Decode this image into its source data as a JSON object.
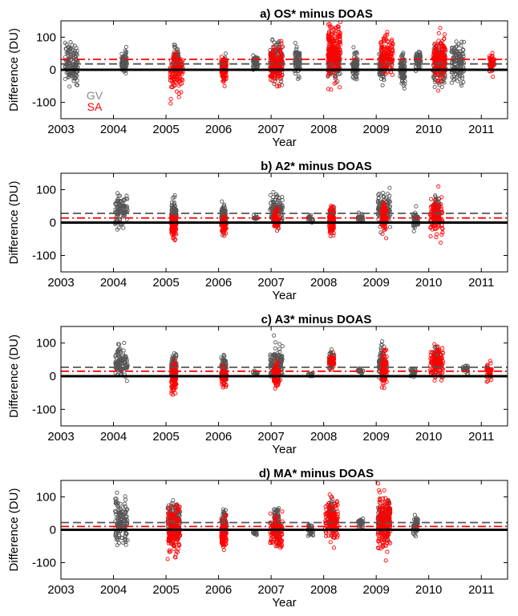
{
  "chart_data": [
    {
      "type": "scatter",
      "title": "a) OS* minus DOAS",
      "xlabel": "Year",
      "ylabel": "Difference (DU)",
      "xlim": [
        2003,
        2011.5
      ],
      "ylim": [
        -150,
        150
      ],
      "xticks": [
        2003,
        2004,
        2005,
        2006,
        2007,
        2008,
        2009,
        2010,
        2011
      ],
      "yticks": [
        -100,
        0,
        100
      ],
      "legend": {
        "placement": "lower-left",
        "entries": [
          "GV",
          "SA"
        ]
      },
      "series": [
        {
          "name": "GV",
          "color": "#555555",
          "mean_line": 18,
          "mean_style": "dashed",
          "clusters": [
            [
              2003.2,
              20,
              95
            ],
            [
              2004.2,
              25,
              50
            ],
            [
              2005.2,
              30,
              55
            ],
            [
              2006.1,
              15,
              40
            ],
            [
              2006.7,
              20,
              35
            ],
            [
              2007.1,
              25,
              90
            ],
            [
              2007.5,
              25,
              60
            ],
            [
              2008.2,
              25,
              80
            ],
            [
              2008.6,
              10,
              60
            ],
            [
              2009.1,
              15,
              70
            ],
            [
              2009.5,
              0,
              70
            ],
            [
              2009.8,
              25,
              50
            ],
            [
              2010.2,
              10,
              100
            ],
            [
              2010.55,
              25,
              90
            ]
          ]
        },
        {
          "name": "SA",
          "color": "#ff0000",
          "mean_line": 32,
          "mean_style": "dashdot",
          "clusters": [
            [
              2005.2,
              -10,
              90
            ],
            [
              2006.1,
              0,
              55
            ],
            [
              2007.1,
              15,
              90
            ],
            [
              2008.2,
              55,
              150
            ],
            [
              2009.2,
              40,
              100
            ],
            [
              2010.2,
              30,
              100
            ],
            [
              2011.2,
              20,
              40
            ]
          ]
        }
      ]
    },
    {
      "type": "scatter",
      "title": "b) A2* minus DOAS",
      "xlabel": "Year",
      "ylabel": "Difference (DU)",
      "xlim": [
        2003,
        2011.5
      ],
      "ylim": [
        -150,
        150
      ],
      "xticks": [
        2003,
        2004,
        2005,
        2006,
        2007,
        2008,
        2009,
        2010,
        2011
      ],
      "yticks": [
        -100,
        0,
        100
      ],
      "series": [
        {
          "name": "GV",
          "color": "#555555",
          "mean_line": 28,
          "mean_style": "dashed",
          "clusters": [
            [
              2004.15,
              40,
              75
            ],
            [
              2005.15,
              30,
              60
            ],
            [
              2006.1,
              25,
              60
            ],
            [
              2006.7,
              15,
              10
            ],
            [
              2007.1,
              40,
              80
            ],
            [
              2007.75,
              10,
              15
            ],
            [
              2008.15,
              20,
              40
            ],
            [
              2008.7,
              15,
              20
            ],
            [
              2009.15,
              40,
              80
            ],
            [
              2009.75,
              5,
              40
            ],
            [
              2010.15,
              40,
              60
            ]
          ]
        },
        {
          "name": "SA",
          "color": "#ff0000",
          "mean_line": 14,
          "mean_style": "dashdot",
          "clusters": [
            [
              2005.15,
              -10,
              60
            ],
            [
              2006.1,
              -10,
              40
            ],
            [
              2007.1,
              10,
              45
            ],
            [
              2008.15,
              0,
              70
            ],
            [
              2009.15,
              20,
              70
            ],
            [
              2010.15,
              15,
              80
            ]
          ]
        }
      ]
    },
    {
      "type": "scatter",
      "title": "c) A3* minus DOAS",
      "xlabel": "Year",
      "ylabel": "Difference (DU)",
      "xlim": [
        2003,
        2011.5
      ],
      "ylim": [
        -150,
        150
      ],
      "xticks": [
        2003,
        2004,
        2005,
        2006,
        2007,
        2008,
        2009,
        2010,
        2011
      ],
      "yticks": [
        -100,
        0,
        100
      ],
      "series": [
        {
          "name": "GV",
          "color": "#555555",
          "mean_line": 27,
          "mean_style": "dashed",
          "clusters": [
            [
              2004.15,
              40,
              75
            ],
            [
              2005.15,
              30,
              60
            ],
            [
              2006.1,
              25,
              60
            ],
            [
              2006.7,
              10,
              10
            ],
            [
              2007.1,
              40,
              80
            ],
            [
              2007.75,
              5,
              10
            ],
            [
              2008.15,
              45,
              50
            ],
            [
              2008.7,
              15,
              15
            ],
            [
              2009.1,
              40,
              70
            ],
            [
              2009.7,
              10,
              20
            ],
            [
              2010.15,
              50,
              60
            ],
            [
              2010.7,
              20,
              20
            ]
          ]
        },
        {
          "name": "SA",
          "color": "#ff0000",
          "mean_line": 15,
          "mean_style": "dashdot",
          "clusters": [
            [
              2005.15,
              -10,
              70
            ],
            [
              2006.1,
              0,
              40
            ],
            [
              2007.1,
              5,
              60
            ],
            [
              2008.15,
              45,
              30
            ],
            [
              2009.15,
              20,
              70
            ],
            [
              2010.15,
              40,
              80
            ],
            [
              2011.15,
              15,
              40
            ]
          ]
        }
      ]
    },
    {
      "type": "scatter",
      "title": "d) MA* minus DOAS",
      "xlabel": "Year",
      "ylabel": "Difference (DU)",
      "xlim": [
        2003,
        2011.5
      ],
      "ylim": [
        -150,
        150
      ],
      "xticks": [
        2003,
        2004,
        2005,
        2006,
        2007,
        2008,
        2009,
        2010,
        2011
      ],
      "yticks": [
        -100,
        0,
        100
      ],
      "series": [
        {
          "name": "GV",
          "color": "#555555",
          "mean_line": 22,
          "mean_style": "dashed",
          "clusters": [
            [
              2004.15,
              25,
              100
            ],
            [
              2005.15,
              20,
              100
            ],
            [
              2006.1,
              20,
              60
            ],
            [
              2006.7,
              -10,
              10
            ],
            [
              2007.1,
              20,
              70
            ],
            [
              2007.75,
              0,
              30
            ],
            [
              2008.15,
              40,
              70
            ],
            [
              2008.7,
              20,
              20
            ],
            [
              2009.15,
              30,
              80
            ],
            [
              2009.75,
              10,
              40
            ]
          ]
        },
        {
          "name": "SA",
          "color": "#ff0000",
          "mean_line": 10,
          "mean_style": "dashdot",
          "clusters": [
            [
              2005.15,
              0,
              110
            ],
            [
              2006.1,
              -10,
              70
            ],
            [
              2007.1,
              -10,
              80
            ],
            [
              2008.15,
              30,
              100
            ],
            [
              2009.15,
              20,
              130
            ]
          ]
        }
      ]
    }
  ]
}
